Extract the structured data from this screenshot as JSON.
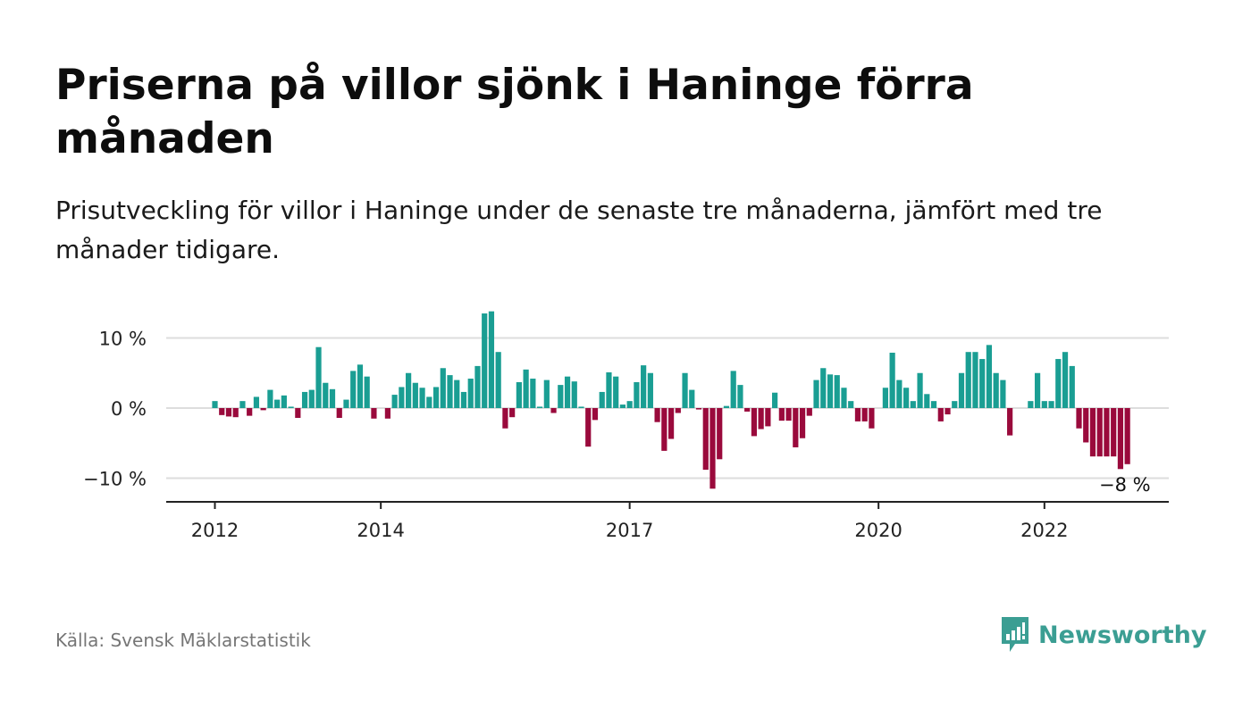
{
  "title": "Priserna på villor sjönk i Haninge förra månaden",
  "subtitle": "Prisutveckling för villor i Haninge under de senaste tre månaderna, jämfört med tre månader tidigare.",
  "source": "Källa: Svensk Mäklarstatistik",
  "brand": {
    "name": "Newsworthy",
    "icon": "newsworthy-logo-icon"
  },
  "colors": {
    "positive": "#1a9e93",
    "negative": "#9a0a3c",
    "grid": "#dddddd",
    "axis": "#222222",
    "brand": "#3b9e93"
  },
  "chart_data": {
    "type": "bar",
    "start": "2012-01",
    "frequency": "monthly",
    "ylim": [
      -13,
      16
    ],
    "yticks": [
      10,
      0,
      -10
    ],
    "ytick_labels": [
      "10 %",
      "0 %",
      "−10 %"
    ],
    "xticks": [
      "2012",
      "2014",
      "2017",
      "2020",
      "2022"
    ],
    "end_label": "−8 %",
    "values": [
      1,
      -1,
      -1.2,
      -1.3,
      1,
      -1.1,
      1.6,
      -0.3,
      2.6,
      1.2,
      1.8,
      0.2,
      -1.4,
      2.3,
      2.6,
      8.7,
      3.6,
      2.7,
      -1.4,
      1.2,
      5.3,
      6.2,
      4.5,
      -1.5,
      0,
      -1.5,
      1.9,
      3,
      5,
      3.6,
      2.9,
      1.6,
      3,
      5.7,
      4.7,
      4,
      2.3,
      4.2,
      6,
      13.5,
      13.8,
      8,
      -2.9,
      -1.3,
      3.7,
      5.5,
      4.2,
      0.2,
      4,
      -0.7,
      3.3,
      4.5,
      3.8,
      0.2,
      -5.5,
      -1.7,
      2.3,
      5.1,
      4.5,
      0.5,
      1,
      3.7,
      6.1,
      5,
      -2,
      -6.1,
      -4.4,
      -0.7,
      5,
      2.6,
      -0.2,
      -8.8,
      -11.5,
      -7.3,
      0.3,
      5.3,
      3.3,
      -0.5,
      -4,
      -3,
      -2.6,
      2.2,
      -1.8,
      -1.8,
      -5.6,
      -4.3,
      -1.1,
      4,
      5.7,
      4.8,
      4.7,
      2.9,
      1,
      -1.9,
      -1.9,
      -2.9,
      0,
      2.9,
      7.9,
      4,
      2.9,
      1,
      5,
      2,
      1,
      -1.9,
      -0.9,
      1,
      5,
      8,
      8,
      7,
      9,
      5,
      4,
      -3.9,
      0,
      0,
      1,
      5,
      1,
      1,
      7,
      8,
      6,
      -2.9,
      -4.9,
      -6.9,
      -6.9,
      -6.9,
      -6.9,
      -8.7,
      -8
    ]
  }
}
